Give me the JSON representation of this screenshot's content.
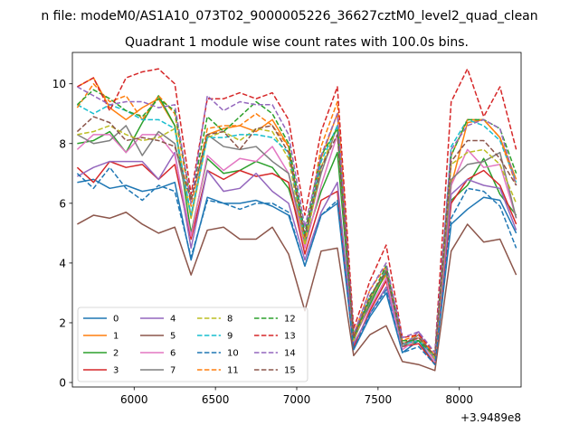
{
  "figure": {
    "suptitle": "n file: modeM0/AS1A10_073T02_9000005226_36627cztM0_level2_quad_clean",
    "offset_label": "+3.9489e8"
  },
  "chart_data": {
    "type": "line",
    "title": "Quadrant 1 module wise count rates with 100.0s bins.",
    "xlabel": "",
    "ylabel": "",
    "x_offset": 394890000,
    "xlim": [
      5620,
      8380
    ],
    "ylim": [
      -0.15,
      11.05
    ],
    "x_ticks": [
      6000,
      6500,
      7000,
      7500,
      8000
    ],
    "x_tick_labels": [
      "6000",
      "6500",
      "7000",
      "7500",
      "8000"
    ],
    "y_ticks": [
      0,
      2,
      4,
      6,
      8,
      10
    ],
    "y_tick_labels": [
      "0",
      "2",
      "4",
      "6",
      "8",
      "10"
    ],
    "grid": false,
    "legend": {
      "placement": "lower-left",
      "columns": 4
    },
    "x": [
      5650,
      5750,
      5850,
      5950,
      6050,
      6150,
      6250,
      6350,
      6450,
      6550,
      6650,
      6750,
      6850,
      6950,
      7050,
      7150,
      7250,
      7350,
      7450,
      7550,
      7650,
      7750,
      7850,
      7950,
      8050,
      8150,
      8250,
      8350
    ],
    "series": [
      {
        "name": "0",
        "color": "#1f77b4",
        "dash": "solid",
        "values": [
          6.7,
          6.8,
          6.5,
          6.6,
          6.4,
          6.5,
          6.7,
          4.1,
          6.2,
          6.0,
          6.0,
          6.1,
          5.9,
          5.6,
          3.9,
          5.6,
          6.0,
          1.1,
          2.2,
          3.0,
          1.0,
          1.4,
          0.6,
          5.3,
          5.8,
          6.2,
          6.1,
          5.0
        ]
      },
      {
        "name": "1",
        "color": "#ff7f0e",
        "dash": "solid",
        "values": [
          9.9,
          10.2,
          9.2,
          8.8,
          9.2,
          9.5,
          8.6,
          5.5,
          8.3,
          8.5,
          8.6,
          8.4,
          8.8,
          7.9,
          4.6,
          7.5,
          9.0,
          1.6,
          2.8,
          3.6,
          1.3,
          1.5,
          0.9,
          6.6,
          8.7,
          8.8,
          8.2,
          6.8
        ]
      },
      {
        "name": "2",
        "color": "#2ca02c",
        "dash": "solid",
        "values": [
          8.0,
          8.1,
          8.4,
          7.7,
          8.7,
          9.6,
          8.6,
          5.0,
          7.5,
          7.0,
          7.1,
          7.4,
          7.2,
          6.5,
          4.7,
          6.4,
          7.7,
          1.5,
          2.6,
          3.7,
          1.2,
          1.4,
          0.8,
          6.1,
          6.6,
          7.5,
          6.3,
          5.6
        ]
      },
      {
        "name": "3",
        "color": "#d62728",
        "dash": "solid",
        "values": [
          7.2,
          6.7,
          7.4,
          7.2,
          7.3,
          6.8,
          7.3,
          4.8,
          7.1,
          6.8,
          7.1,
          6.9,
          7.0,
          6.7,
          4.3,
          6.1,
          6.4,
          1.2,
          2.4,
          3.4,
          1.2,
          1.3,
          0.6,
          6.0,
          6.8,
          7.1,
          6.6,
          5.3
        ]
      },
      {
        "name": "4",
        "color": "#9467bd",
        "dash": "solid",
        "values": [
          6.9,
          7.2,
          7.4,
          7.4,
          7.4,
          6.8,
          7.7,
          4.5,
          7.1,
          6.4,
          6.5,
          7.0,
          6.4,
          6.0,
          4.1,
          5.7,
          6.7,
          1.3,
          2.3,
          3.2,
          1.2,
          1.7,
          0.7,
          6.3,
          6.8,
          6.6,
          6.5,
          5.1
        ]
      },
      {
        "name": "5",
        "color": "#8c564b",
        "dash": "solid",
        "values": [
          5.3,
          5.6,
          5.5,
          5.7,
          5.3,
          5.0,
          5.2,
          3.6,
          5.1,
          5.2,
          4.8,
          4.8,
          5.2,
          4.3,
          2.4,
          4.4,
          4.5,
          0.9,
          1.6,
          1.9,
          0.7,
          0.6,
          0.4,
          4.4,
          5.3,
          4.7,
          4.8,
          3.6
        ]
      },
      {
        "name": "6",
        "color": "#e377c2",
        "dash": "solid",
        "values": [
          7.8,
          8.3,
          8.3,
          7.7,
          8.3,
          8.3,
          7.6,
          4.9,
          7.6,
          7.1,
          7.5,
          7.4,
          7.9,
          7.0,
          4.5,
          6.6,
          8.3,
          1.5,
          2.5,
          3.5,
          1.1,
          1.5,
          0.7,
          6.6,
          7.8,
          7.2,
          7.3,
          5.5
        ]
      },
      {
        "name": "7",
        "color": "#7f7f7f",
        "dash": "solid",
        "values": [
          8.3,
          8.0,
          8.1,
          8.6,
          7.6,
          8.4,
          8.0,
          5.6,
          8.3,
          7.9,
          7.8,
          7.9,
          7.4,
          7.0,
          4.8,
          7.0,
          8.6,
          1.4,
          2.7,
          3.8,
          1.2,
          1.6,
          0.8,
          6.8,
          7.3,
          7.4,
          7.7,
          5.5
        ]
      },
      {
        "name": "8",
        "color": "#bcbd22",
        "dash": "dashed",
        "values": [
          8.3,
          8.4,
          8.6,
          8.3,
          8.1,
          8.2,
          8.5,
          5.5,
          8.2,
          8.4,
          8.1,
          8.5,
          8.4,
          7.5,
          4.6,
          7.2,
          8.6,
          1.4,
          2.8,
          3.7,
          1.3,
          1.5,
          0.8,
          7.3,
          7.7,
          7.8,
          7.3,
          6.0
        ]
      },
      {
        "name": "9",
        "color": "#17becf",
        "dash": "dashed",
        "values": [
          9.3,
          9.0,
          9.3,
          9.1,
          8.8,
          8.8,
          8.5,
          5.6,
          8.2,
          8.2,
          8.3,
          8.3,
          8.2,
          7.7,
          4.8,
          7.4,
          8.6,
          1.6,
          2.9,
          3.7,
          1.3,
          1.4,
          0.9,
          7.9,
          8.8,
          8.6,
          8.1,
          6.7
        ]
      },
      {
        "name": "10",
        "color": "#1f77b4",
        "dash": "dashed",
        "values": [
          7.0,
          6.5,
          7.2,
          6.5,
          6.1,
          6.6,
          6.4,
          4.2,
          6.1,
          6.0,
          5.8,
          6.0,
          6.0,
          5.7,
          3.9,
          5.6,
          6.1,
          1.1,
          2.3,
          3.1,
          1.0,
          1.2,
          0.6,
          5.5,
          6.5,
          6.4,
          5.9,
          4.5
        ]
      },
      {
        "name": "11",
        "color": "#ff7f0e",
        "dash": "dashed",
        "values": [
          9.2,
          10.0,
          9.4,
          9.6,
          8.8,
          9.6,
          9.0,
          5.9,
          8.5,
          8.6,
          8.6,
          9.0,
          8.6,
          7.9,
          4.8,
          7.9,
          9.4,
          1.6,
          3.1,
          3.9,
          1.4,
          1.6,
          0.9,
          7.6,
          8.8,
          8.8,
          8.2,
          6.6
        ]
      },
      {
        "name": "12",
        "color": "#2ca02c",
        "dash": "dashed",
        "values": [
          9.3,
          9.8,
          9.5,
          9.1,
          8.9,
          9.5,
          9.1,
          6.1,
          8.9,
          8.4,
          8.9,
          9.4,
          9.0,
          8.0,
          5.0,
          7.6,
          8.5,
          1.5,
          2.8,
          3.9,
          1.4,
          1.4,
          0.9,
          7.6,
          8.8,
          8.8,
          8.5,
          7.0
        ]
      },
      {
        "name": "13",
        "color": "#d62728",
        "dash": "dashed",
        "values": [
          9.9,
          10.2,
          9.1,
          10.2,
          10.4,
          10.5,
          10.0,
          6.3,
          9.5,
          9.5,
          9.7,
          9.5,
          9.7,
          8.8,
          5.6,
          8.4,
          9.9,
          1.8,
          3.4,
          4.6,
          1.5,
          1.6,
          1.0,
          9.4,
          10.5,
          8.9,
          9.9,
          7.8
        ]
      },
      {
        "name": "14",
        "color": "#9467bd",
        "dash": "dashed",
        "values": [
          9.9,
          9.6,
          9.3,
          9.4,
          9.4,
          9.2,
          9.3,
          6.0,
          9.6,
          9.1,
          9.4,
          9.3,
          9.3,
          8.3,
          5.2,
          7.6,
          9.0,
          1.6,
          3.1,
          4.0,
          1.5,
          1.7,
          1.0,
          7.8,
          8.6,
          8.8,
          8.5,
          6.6
        ]
      },
      {
        "name": "15",
        "color": "#8c564b",
        "dash": "dashed",
        "values": [
          8.4,
          8.9,
          8.7,
          8.1,
          8.2,
          8.1,
          7.9,
          6.1,
          8.3,
          8.4,
          7.8,
          8.5,
          8.6,
          7.7,
          4.9,
          7.2,
          8.3,
          1.5,
          2.9,
          3.7,
          1.3,
          1.5,
          0.9,
          7.4,
          8.1,
          8.1,
          7.5,
          6.6
        ]
      }
    ]
  }
}
